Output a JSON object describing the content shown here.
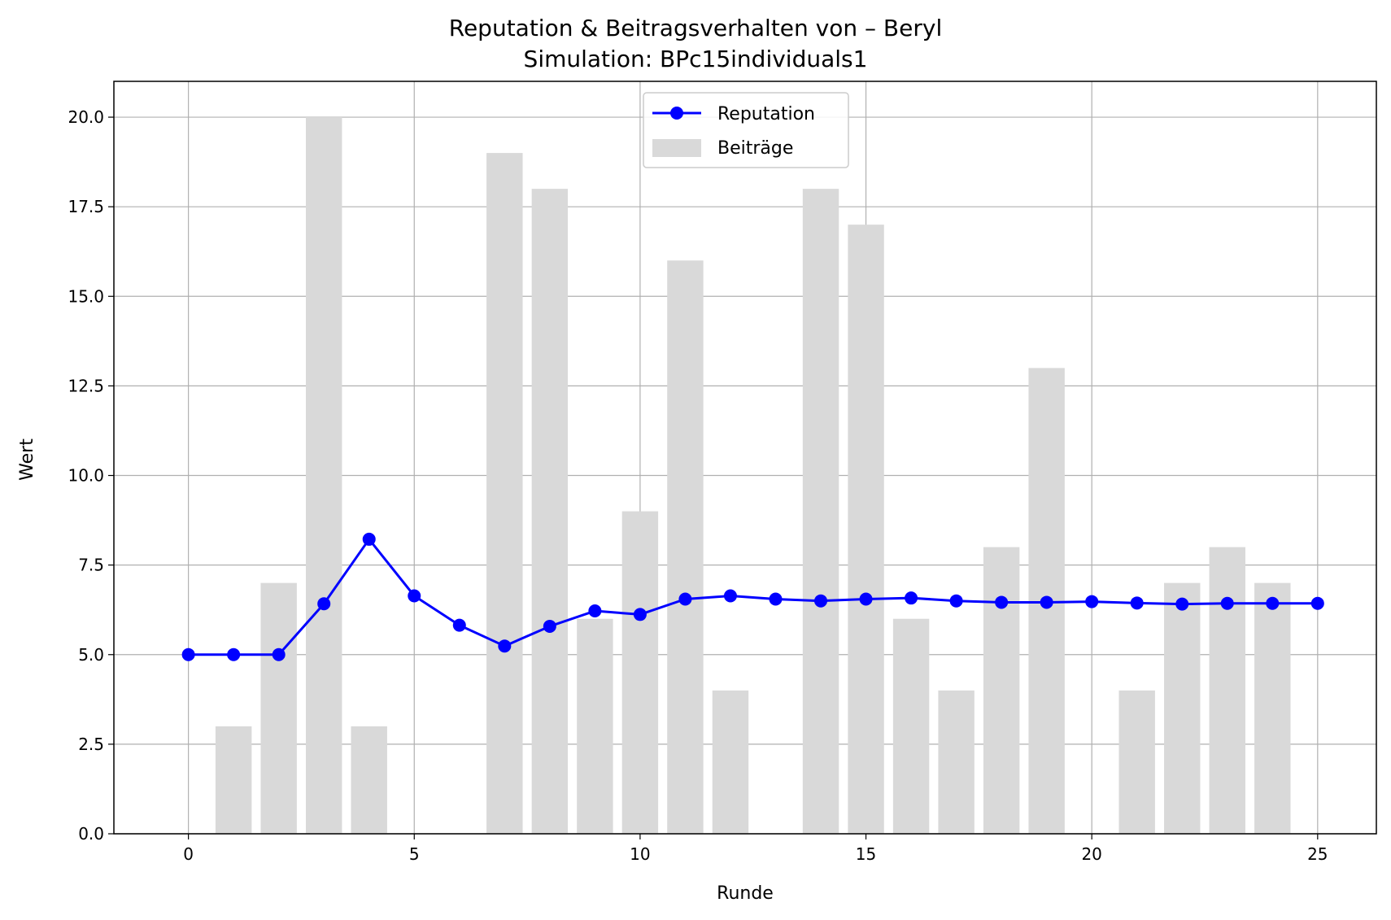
{
  "chart_data": {
    "type": "bar+line",
    "title": "Reputation & Beitragsverhalten von – Beryl",
    "subtitle": "Simulation: BPc15individuals1",
    "xlabel": "Runde",
    "ylabel": "Wert",
    "xlim": [
      -1.65,
      26.3
    ],
    "ylim": [
      0,
      21.0
    ],
    "xticks": [
      0,
      5,
      10,
      15,
      20,
      25
    ],
    "yticks": [
      0.0,
      2.5,
      5.0,
      7.5,
      10.0,
      12.5,
      15.0,
      17.5,
      20.0
    ],
    "grid": true,
    "legend_position": "top-center",
    "x": [
      0,
      1,
      2,
      3,
      4,
      5,
      6,
      7,
      8,
      9,
      10,
      11,
      12,
      13,
      14,
      15,
      16,
      17,
      18,
      19,
      20,
      21,
      22,
      23,
      24,
      25
    ],
    "series": [
      {
        "name": "Beiträge",
        "kind": "bar",
        "color": "#d9d9d9",
        "values": [
          0,
          3,
          7,
          20,
          3,
          0,
          0,
          19,
          18,
          6,
          9,
          16,
          4,
          0,
          18,
          17,
          6,
          4,
          8,
          13,
          0,
          4,
          7,
          8,
          7,
          0
        ]
      },
      {
        "name": "Reputation",
        "kind": "line",
        "color": "#0000ff",
        "marker": "circle",
        "values": [
          5.0,
          5.0,
          5.0,
          6.42,
          8.22,
          6.64,
          5.82,
          5.24,
          5.79,
          6.22,
          6.12,
          6.55,
          6.64,
          6.55,
          6.5,
          6.55,
          6.58,
          6.5,
          6.46,
          6.46,
          6.48,
          6.44,
          6.41,
          6.43,
          6.43,
          6.43
        ]
      }
    ]
  }
}
